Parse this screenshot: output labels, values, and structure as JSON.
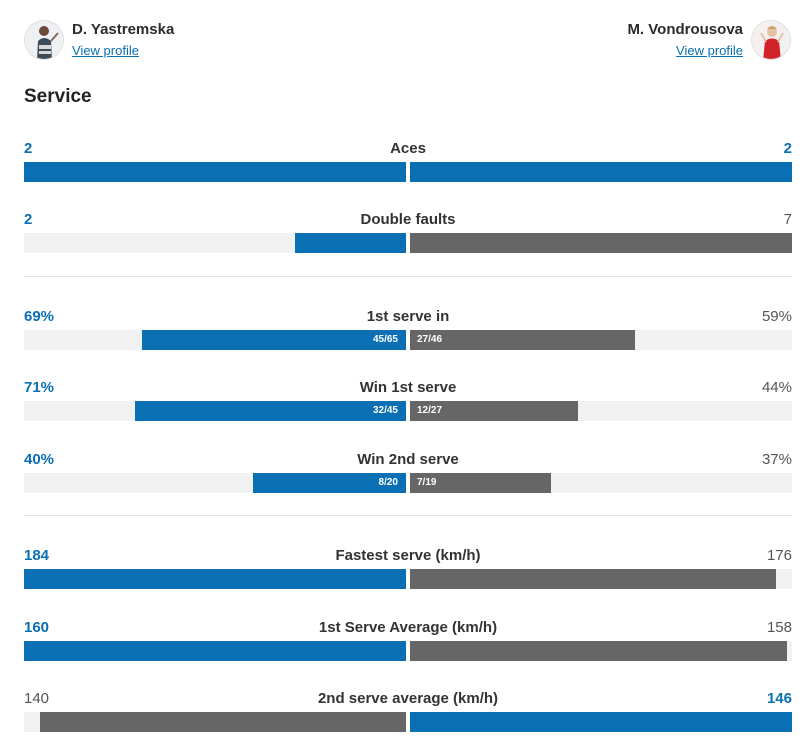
{
  "players": {
    "left": {
      "name": "D. Yastremska",
      "link": "View profile"
    },
    "right": {
      "name": "M. Vondrousova",
      "link": "View profile"
    }
  },
  "section_title": "Service",
  "colors": {
    "accent": "#0a6fb3",
    "opponent": "#666666",
    "track": "#f1f1f1"
  },
  "stats": [
    {
      "label": "Aces",
      "left": "2",
      "right": "2",
      "left_fill": 1.0,
      "right_fill": 1.0,
      "left_color": "blue",
      "right_color": "blue",
      "left_win": true,
      "right_win": true
    },
    {
      "label": "Double faults",
      "left": "2",
      "right": "7",
      "left_fill": 0.29,
      "right_fill": 1.0,
      "left_color": "blue",
      "right_color": "grey",
      "left_win": true,
      "right_win": false
    },
    {
      "label": "1st serve in",
      "left": "69%",
      "right": "59%",
      "left_frac": "45/65",
      "right_frac": "27/46",
      "left_fill": 0.69,
      "right_fill": 0.59,
      "left_color": "blue",
      "right_color": "grey",
      "left_win": true,
      "right_win": false
    },
    {
      "label": "Win 1st serve",
      "left": "71%",
      "right": "44%",
      "left_frac": "32/45",
      "right_frac": "12/27",
      "left_fill": 0.71,
      "right_fill": 0.44,
      "left_color": "blue",
      "right_color": "grey",
      "left_win": true,
      "right_win": false
    },
    {
      "label": "Win 2nd serve",
      "left": "40%",
      "right": "37%",
      "left_frac": "8/20",
      "right_frac": "7/19",
      "left_fill": 0.4,
      "right_fill": 0.37,
      "left_color": "blue",
      "right_color": "grey",
      "left_win": true,
      "right_win": false
    },
    {
      "label": "Fastest serve (km/h)",
      "left": "184",
      "right": "176",
      "left_fill": 1.0,
      "right_fill": 0.957,
      "left_color": "blue",
      "right_color": "grey",
      "left_win": true,
      "right_win": false
    },
    {
      "label": "1st Serve Average (km/h)",
      "left": "160",
      "right": "158",
      "left_fill": 1.0,
      "right_fill": 0.988,
      "left_color": "blue",
      "right_color": "grey",
      "left_win": true,
      "right_win": false
    },
    {
      "label": "2nd serve average (km/h)",
      "left": "140",
      "right": "146",
      "left_fill": 0.959,
      "right_fill": 1.0,
      "left_color": "grey",
      "right_color": "blue",
      "left_win": false,
      "right_win": true
    }
  ]
}
